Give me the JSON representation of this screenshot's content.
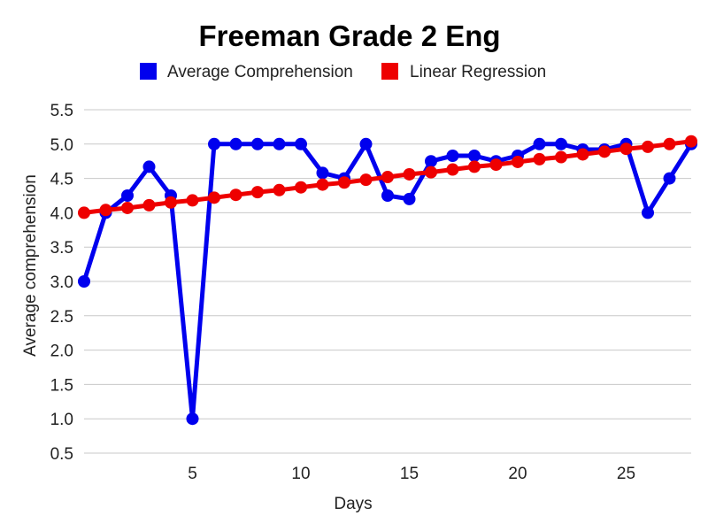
{
  "chart_data": {
    "type": "line",
    "title": "Freeman Grade 2 Eng",
    "xlabel": "Days",
    "ylabel": "Average comprehension",
    "xlim": [
      0,
      28
    ],
    "ylim": [
      0.5,
      5.5
    ],
    "xticks": [
      5,
      10,
      15,
      20,
      25
    ],
    "yticks": [
      0.5,
      1.0,
      1.5,
      2.0,
      2.5,
      3.0,
      3.5,
      4.0,
      4.5,
      5.0,
      5.5
    ],
    "grid": true,
    "legend": "top",
    "series": [
      {
        "name": "Average Comprehension",
        "color": "#0000ee",
        "x": [
          0,
          1,
          2,
          3,
          4,
          5,
          6,
          7,
          8,
          9,
          10,
          11,
          12,
          13,
          14,
          15,
          16,
          17,
          18,
          19,
          20,
          21,
          22,
          23,
          24,
          25,
          26,
          27,
          28
        ],
        "y": [
          3.0,
          4.0,
          4.25,
          4.67,
          4.25,
          1.0,
          5.0,
          5.0,
          5.0,
          5.0,
          5.0,
          4.58,
          4.5,
          5.0,
          4.25,
          4.2,
          4.75,
          4.83,
          4.83,
          4.75,
          4.83,
          5.0,
          5.0,
          4.92,
          4.92,
          5.0,
          4.0,
          4.5,
          5.0
        ]
      },
      {
        "name": "Linear Regression",
        "color": "#ee0000",
        "x": [
          0,
          1,
          2,
          3,
          4,
          5,
          6,
          7,
          8,
          9,
          10,
          11,
          12,
          13,
          14,
          15,
          16,
          17,
          18,
          19,
          20,
          21,
          22,
          23,
          24,
          25,
          26,
          27,
          28
        ],
        "y": [
          4.0,
          4.04,
          4.07,
          4.11,
          4.15,
          4.18,
          4.22,
          4.26,
          4.3,
          4.33,
          4.37,
          4.41,
          4.44,
          4.48,
          4.52,
          4.56,
          4.59,
          4.63,
          4.67,
          4.7,
          4.74,
          4.78,
          4.81,
          4.85,
          4.89,
          4.93,
          4.96,
          5.0,
          5.04
        ]
      }
    ]
  }
}
